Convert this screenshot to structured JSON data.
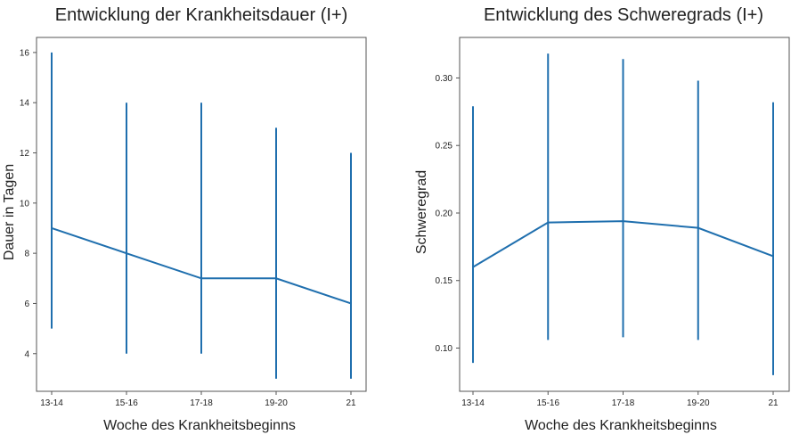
{
  "chart_data": [
    {
      "type": "line",
      "title": "Entwicklung der Krankheitsdauer (I+)",
      "xlabel": "Woche des Krankheitsbeginns",
      "ylabel": "Dauer in Tagen",
      "categories": [
        "13-14",
        "15-16",
        "17-18",
        "19-20",
        "21"
      ],
      "values": [
        9,
        8,
        7,
        7,
        6
      ],
      "error_low": [
        5,
        4,
        4,
        3,
        3
      ],
      "error_high": [
        16,
        14,
        14,
        13,
        12
      ],
      "yticks": [
        4,
        6,
        8,
        10,
        12,
        14,
        16
      ],
      "ylim": [
        2.5,
        16.6
      ],
      "color": "#1f6fae",
      "grid": false
    },
    {
      "type": "line",
      "title": "Entwicklung des Schweregrads (I+)",
      "xlabel": "Woche des Krankheitsbeginns",
      "ylabel": "Schweregrad",
      "categories": [
        "13-14",
        "15-16",
        "17-18",
        "19-20",
        "21"
      ],
      "values": [
        0.16,
        0.193,
        0.194,
        0.189,
        0.168
      ],
      "error_low": [
        0.089,
        0.106,
        0.108,
        0.106,
        0.08
      ],
      "error_high": [
        0.279,
        0.318,
        0.314,
        0.298,
        0.282
      ],
      "ytick_labels": [
        "0.10",
        "0.15",
        "0.20",
        "0.25",
        "0.30"
      ],
      "yticks": [
        0.1,
        0.15,
        0.2,
        0.25,
        0.3
      ],
      "ylim": [
        0.068,
        0.33
      ],
      "color": "#1f6fae",
      "grid": false
    }
  ]
}
